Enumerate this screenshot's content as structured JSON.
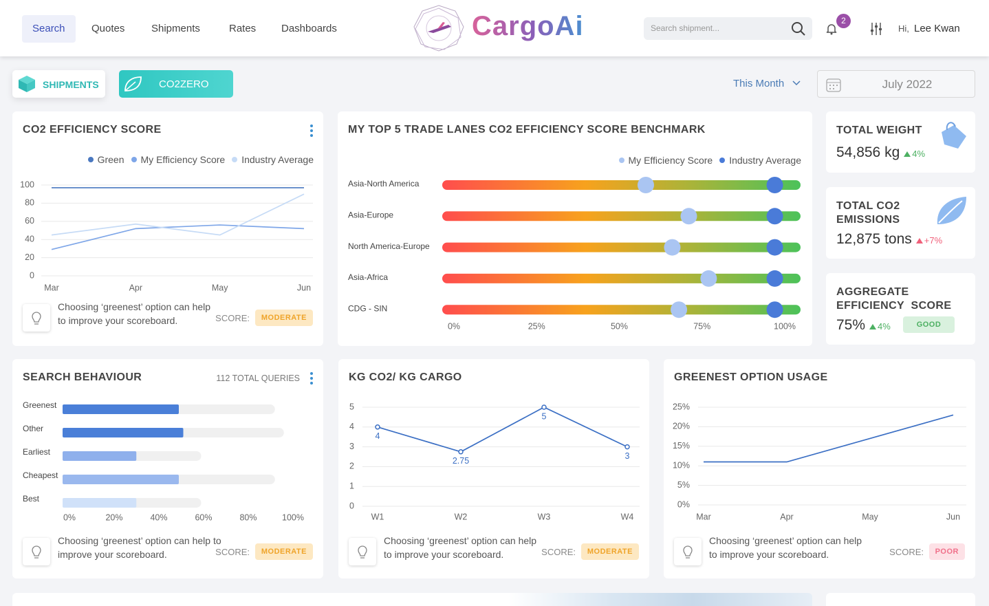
{
  "nav": {
    "links": [
      "Search",
      "Quotes",
      "Shipments",
      "Rates",
      "Dashboards"
    ],
    "logo": "CargoAi",
    "search_placeholder": "Search shipment...",
    "notifications": "2",
    "greeting": "Hi,",
    "user": "Lee Kwan"
  },
  "toolbar": {
    "tabs": [
      "SHIPMENTS",
      "CO2ZERO"
    ],
    "period": "This Month",
    "date": "July 2022"
  },
  "stats": [
    {
      "title": "TOTAL WEIGHT",
      "value": "54,856 kg",
      "change": "4%"
    },
    {
      "title": "TOTAL CO2 EMISSIONS",
      "value": "12,875 tons",
      "change": "+7%"
    },
    {
      "title": "AGGREGATE EFFICIENCY  SCORE",
      "value": "75%",
      "change": "4%",
      "badge": "GOOD"
    }
  ],
  "chart_data": [
    {
      "type": "line",
      "title": "CO2 EFFICIENCY SCORE",
      "categories": [
        "Mar",
        "Apr",
        "May",
        "Jun"
      ],
      "series": [
        {
          "name": "Green",
          "color": "#4a78c0",
          "values": [
            97,
            97,
            97,
            97
          ]
        },
        {
          "name": "My Efficiency Score",
          "color": "#7ea6e8",
          "values": [
            29,
            52,
            56,
            52
          ]
        },
        {
          "name": "Industry Average",
          "color": "#c6dbf6",
          "values": [
            45,
            57,
            45,
            90
          ]
        }
      ],
      "ylim": [
        0,
        100
      ],
      "yticks": [
        0,
        20,
        40,
        60,
        80,
        100
      ],
      "grid": true,
      "tip": "Choosing ‘greenest’ option can help to improve your scoreboard.",
      "score_label": "SCORE:",
      "score": "MODERATE"
    },
    {
      "type": "dot",
      "title": "MY TOP 5 TRADE LANES CO2 EFFICIENCY SCORE BENCHMARK",
      "categories": [
        "Asia-North America",
        "Asia-Europe",
        "North America-Europe",
        "Asia-Africa",
        "CDG - SIN"
      ],
      "series": [
        {
          "name": "My Efficiency Score",
          "color": "#aac5f2",
          "values": [
            58,
            71,
            66,
            77,
            68
          ]
        },
        {
          "name": "Industry Average",
          "color": "#4a7bd8",
          "values": [
            97,
            97,
            97,
            97,
            97
          ]
        }
      ],
      "xlim": [
        0,
        100
      ],
      "xticks": [
        {
          "value": 0,
          "label": "0%"
        },
        {
          "value": 25,
          "label": "25%"
        },
        {
          "value": 50,
          "label": "50%"
        },
        {
          "value": 75,
          "label": "75%"
        },
        {
          "value": 100,
          "label": "100%"
        }
      ]
    },
    {
      "type": "bar",
      "title": "SEARCH BEHAVIOUR",
      "subtitle": "112 TOTAL QUERIES",
      "categories": [
        "Greenest",
        "Other",
        "Earliest",
        "Cheapest",
        "Best"
      ],
      "series": [
        {
          "colors": [
            "#4a7fd8",
            "#4a7fd8",
            "#8fb0ec",
            "#9ab8ee",
            "#d0e1f9"
          ],
          "values": [
            52,
            54,
            33,
            52,
            33
          ]
        },
        {
          "color": "#f0f0f0",
          "values": [
            95,
            99,
            62,
            95,
            62
          ]
        }
      ],
      "xlim": [
        0,
        100
      ],
      "xticks": [
        {
          "value": 0,
          "label": "0%"
        },
        {
          "value": 20,
          "label": "20%"
        },
        {
          "value": 40,
          "label": "40%"
        },
        {
          "value": 60,
          "label": "60%"
        },
        {
          "value": 80,
          "label": "80%"
        },
        {
          "value": 100,
          "label": "100%"
        }
      ],
      "tip": "Choosing ‘greenest’ option can help to improve your scoreboard.",
      "score_label": "SCORE:",
      "score": "MODERATE"
    },
    {
      "type": "line",
      "title": "KG CO2/ KG CARGO",
      "categories": [
        "W1",
        "W2",
        "W3",
        "W4"
      ],
      "series": [
        {
          "color": "#3b6fc4",
          "values": [
            4,
            2.75,
            5,
            3
          ]
        }
      ],
      "ylim": [
        0,
        5
      ],
      "yticks": [
        0,
        1,
        2,
        3,
        4,
        5
      ],
      "grid": true,
      "markers": true,
      "data_labels": true,
      "tip": "Choosing ‘greenest’ option can help to improve your scoreboard.",
      "score_label": "SCORE:",
      "score": "MODERATE"
    },
    {
      "type": "line",
      "title": "GREENEST OPTION USAGE",
      "categories": [
        "Mar",
        "Apr",
        "May",
        "Jun"
      ],
      "series": [
        {
          "color": "#3b6fc4",
          "values": [
            11,
            11,
            17,
            23
          ]
        }
      ],
      "ylim": [
        0,
        25
      ],
      "yticks": [
        {
          "value": 0,
          "label": "0%"
        },
        {
          "value": 5,
          "label": "5%"
        },
        {
          "value": 10,
          "label": "10%"
        },
        {
          "value": 15,
          "label": "15%"
        },
        {
          "value": 20,
          "label": "20%"
        },
        {
          "value": 25,
          "label": "25%"
        }
      ],
      "grid": true,
      "tip": "Choosing ‘greenest’ option can help to improve your scoreboard.",
      "score_label": "SCORE:",
      "score": "POOR"
    }
  ]
}
